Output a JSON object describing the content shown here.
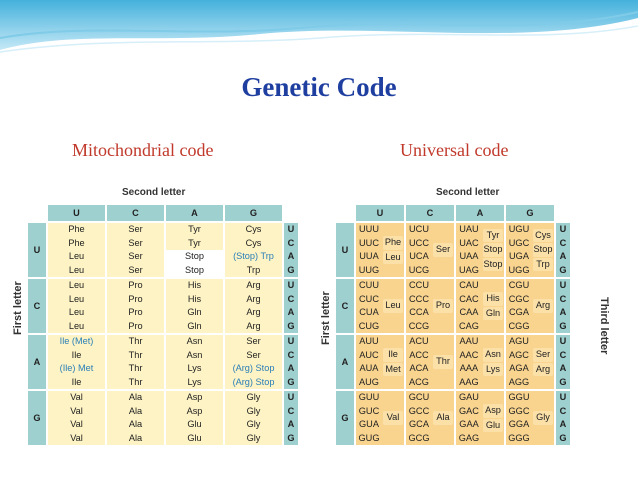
{
  "title": "Genetic Code",
  "left_label": "Mitochondrial code",
  "right_label": "Universal code",
  "second_letter": "Second letter",
  "first_letter": "First letter",
  "third_letter": "Third letter",
  "bases": [
    "U",
    "C",
    "A",
    "G"
  ],
  "colors": {
    "title": "#1f3fa0",
    "subtitle": "#c0392b",
    "header": "#9fd0d0",
    "mito_cell": "#fdf3c4",
    "universal_cell": "#f9d48f"
  },
  "mito": {
    "rows": [
      {
        "first": "U",
        "cols": [
          [
            "Phe",
            "Phe",
            "Leu",
            "Leu"
          ],
          [
            "Ser",
            "Ser",
            "Ser",
            "Ser"
          ],
          [
            "Tyr",
            "Tyr",
            "Stop",
            "Stop"
          ],
          [
            "Cys",
            "Cys",
            "(Stop) Trp",
            "Trp"
          ]
        ]
      },
      {
        "first": "C",
        "cols": [
          [
            "Leu",
            "Leu",
            "Leu",
            "Leu"
          ],
          [
            "Pro",
            "Pro",
            "Pro",
            "Pro"
          ],
          [
            "His",
            "His",
            "Gln",
            "Gln"
          ],
          [
            "Arg",
            "Arg",
            "Arg",
            "Arg"
          ]
        ]
      },
      {
        "first": "A",
        "cols": [
          [
            "Ile (Met)",
            "Ile",
            "(Ile) Met",
            "Ile"
          ],
          [
            "Thr",
            "Thr",
            "Thr",
            "Thr"
          ],
          [
            "Asn",
            "Asn",
            "Lys",
            "Lys"
          ],
          [
            "Ser",
            "Ser",
            "(Arg) Stop",
            "(Arg) Stop"
          ]
        ]
      },
      {
        "first": "G",
        "cols": [
          [
            "Val",
            "Val",
            "Val",
            "Val"
          ],
          [
            "Ala",
            "Ala",
            "Ala",
            "Ala"
          ],
          [
            "Asp",
            "Asp",
            "Glu",
            "Glu"
          ],
          [
            "Gly",
            "Gly",
            "Gly",
            "Gly"
          ]
        ]
      }
    ]
  },
  "universal": {
    "rows": [
      {
        "first": "U",
        "cols": [
          {
            "codons": [
              "UUU",
              "UUC",
              "UUA",
              "UUG"
            ],
            "aa": [
              "Phe",
              "Leu"
            ]
          },
          {
            "codons": [
              "UCU",
              "UCC",
              "UCA",
              "UCG"
            ],
            "aa": [
              "Ser"
            ]
          },
          {
            "codons": [
              "UAU",
              "UAC",
              "UAA",
              "UAG"
            ],
            "aa": [
              "Tyr",
              "Stop",
              "Stop"
            ]
          },
          {
            "codons": [
              "UGU",
              "UGC",
              "UGA",
              "UGG"
            ],
            "aa": [
              "Cys",
              "Stop",
              "Trp"
            ]
          }
        ]
      },
      {
        "first": "C",
        "cols": [
          {
            "codons": [
              "CUU",
              "CUC",
              "CUA",
              "CUG"
            ],
            "aa": [
              "Leu"
            ]
          },
          {
            "codons": [
              "CCU",
              "CCC",
              "CCA",
              "CCG"
            ],
            "aa": [
              "Pro"
            ]
          },
          {
            "codons": [
              "CAU",
              "CAC",
              "CAA",
              "CAG"
            ],
            "aa": [
              "His",
              "Gln"
            ]
          },
          {
            "codons": [
              "CGU",
              "CGC",
              "CGA",
              "CGG"
            ],
            "aa": [
              "Arg"
            ]
          }
        ]
      },
      {
        "first": "A",
        "cols": [
          {
            "codons": [
              "AUU",
              "AUC",
              "AUA",
              "AUG"
            ],
            "aa": [
              "Ile",
              "Met"
            ]
          },
          {
            "codons": [
              "ACU",
              "ACC",
              "ACA",
              "ACG"
            ],
            "aa": [
              "Thr"
            ]
          },
          {
            "codons": [
              "AAU",
              "AAC",
              "AAA",
              "AAG"
            ],
            "aa": [
              "Asn",
              "Lys"
            ]
          },
          {
            "codons": [
              "AGU",
              "AGC",
              "AGA",
              "AGG"
            ],
            "aa": [
              "Ser",
              "Arg"
            ]
          }
        ]
      },
      {
        "first": "G",
        "cols": [
          {
            "codons": [
              "GUU",
              "GUC",
              "GUA",
              "GUG"
            ],
            "aa": [
              "Val"
            ]
          },
          {
            "codons": [
              "GCU",
              "GCC",
              "GCA",
              "GCG"
            ],
            "aa": [
              "Ala"
            ]
          },
          {
            "codons": [
              "GAU",
              "GAC",
              "GAA",
              "GAG"
            ],
            "aa": [
              "Asp",
              "Glu"
            ]
          },
          {
            "codons": [
              "GGU",
              "GGC",
              "GGA",
              "GGG"
            ],
            "aa": [
              "Gly"
            ]
          }
        ]
      }
    ]
  }
}
